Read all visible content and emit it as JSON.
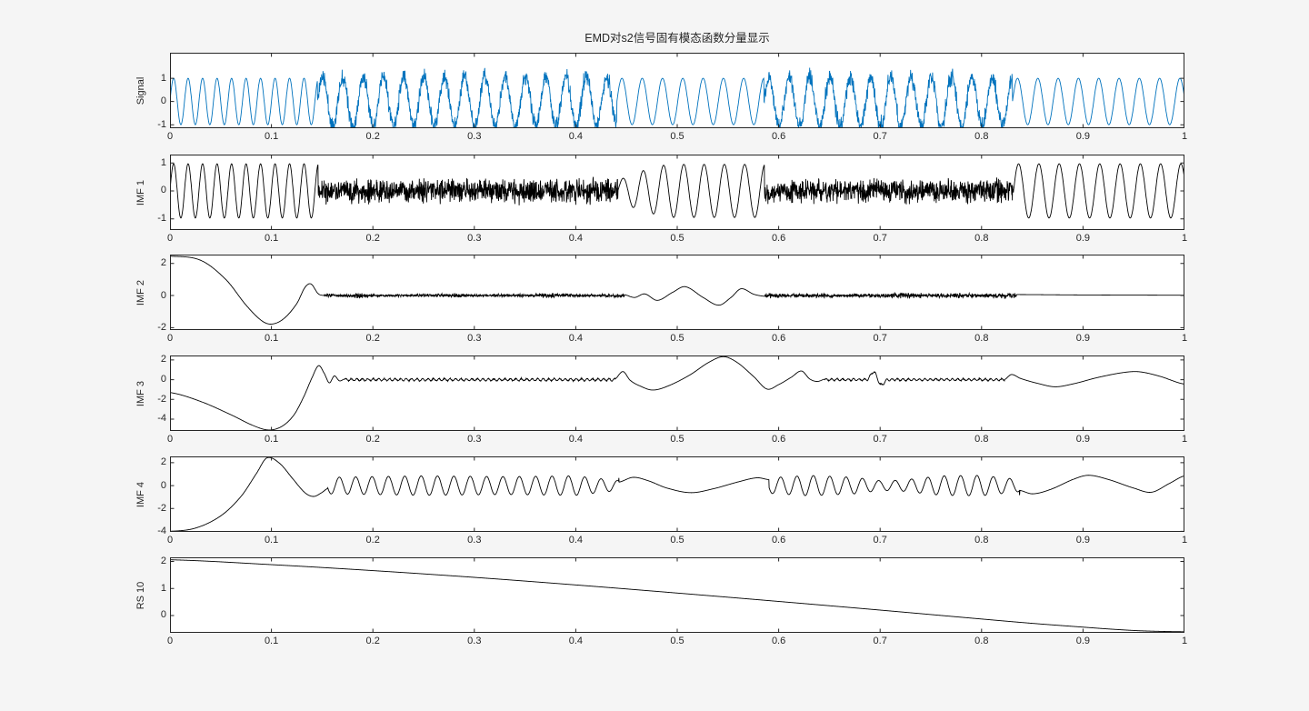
{
  "chart_data": {
    "type": "line",
    "title": "EMD对s2信号固有模态函数分量显示",
    "x": {
      "min": 0,
      "max": 1,
      "ticks": [
        0,
        0.1,
        0.2,
        0.3,
        0.4,
        0.5,
        0.6,
        0.7,
        0.8,
        0.9,
        1
      ],
      "tick_labels": [
        "0",
        "0.1",
        "0.2",
        "0.3",
        "0.4",
        "0.5",
        "0.6",
        "0.7",
        "0.8",
        "0.9",
        "1"
      ]
    },
    "colors": {
      "signal_line": "#0072BD",
      "imf_line": "#000000",
      "axis": "#262626",
      "tick_text": "#262626",
      "axes_bg": "#ffffff",
      "figure_bg": "#f5f5f5"
    },
    "subplots": [
      {
        "ylabel": "Signal",
        "color": "#0072BD",
        "ylim": [
          -1.15,
          2.1
        ],
        "yticks": [
          -1,
          0,
          1
        ],
        "ytick_labels": [
          "-1",
          "0",
          "1"
        ],
        "segments": [
          {
            "type": "sine",
            "t0": 0,
            "t1": 0.1455,
            "freq": 70,
            "amp": 1.0
          },
          {
            "type": "mix",
            "t0": 0.1455,
            "t1": 0.4405,
            "freq": 50,
            "amp": 1.08,
            "noise": 0.33,
            "seed": 11
          },
          {
            "type": "sine",
            "t0": 0.4405,
            "t1": 0.5855,
            "freq": 50,
            "amp": 1.0
          },
          {
            "type": "mix",
            "t0": 0.5855,
            "t1": 0.8305,
            "freq": 50,
            "amp": 1.08,
            "noise": 0.33,
            "seed": 12
          },
          {
            "type": "sine",
            "t0": 0.8305,
            "t1": 1.0,
            "freq": 50,
            "amp": 1.0
          }
        ]
      },
      {
        "ylabel": "IMF 1",
        "color": "#000000",
        "ylim": [
          -1.4,
          1.3
        ],
        "yticks": [
          -1,
          0,
          1
        ],
        "ytick_labels": [
          "-1",
          "0",
          "1"
        ],
        "segments": [
          {
            "type": "sine",
            "t0": 0,
            "t1": 0.146,
            "freq": 70,
            "amp": 0.97
          },
          {
            "type": "noise",
            "t0": 0.146,
            "t1": 0.4415,
            "amp": 0.4,
            "seed": 21
          },
          {
            "type": "sine",
            "t0": 0.4415,
            "t1": 0.586,
            "freq": 50,
            "amp": 0.95,
            "env": [
              [
                0.4415,
                0.4
              ],
              [
                0.465,
                0.75
              ],
              [
                0.49,
                1.0
              ],
              [
                0.586,
                1.0
              ]
            ]
          },
          {
            "type": "noise",
            "t0": 0.586,
            "t1": 0.8315,
            "amp": 0.38,
            "seed": 22
          },
          {
            "type": "sine",
            "t0": 0.8315,
            "t1": 1.0,
            "freq": 50,
            "amp": 0.97
          }
        ]
      },
      {
        "ylabel": "IMF 2",
        "color": "#000000",
        "ylim": [
          -2.15,
          2.55
        ],
        "yticks": [
          -2,
          0,
          2
        ],
        "ytick_labels": [
          "-2",
          "0",
          "2"
        ],
        "segments": [
          {
            "type": "spline",
            "pts": [
              [
                0,
                2.45
              ],
              [
                0.03,
                2.2
              ],
              [
                0.055,
                1.0
              ],
              [
                0.075,
                -0.6
              ],
              [
                0.09,
                -1.55
              ],
              [
                0.1,
                -1.78
              ],
              [
                0.112,
                -1.45
              ],
              [
                0.125,
                -0.5
              ],
              [
                0.133,
                0.5
              ],
              [
                0.139,
                0.72
              ],
              [
                0.146,
                0.12
              ],
              [
                0.152,
                0.0
              ]
            ]
          },
          {
            "type": "noise",
            "t0": 0.152,
            "t1": 0.448,
            "amp": 0.09,
            "seed": 31,
            "env": [
              [
                0.152,
                1.3
              ],
              [
                0.17,
                0.8
              ],
              [
                0.19,
                1.8
              ],
              [
                0.205,
                0.8
              ],
              [
                0.25,
                1.0
              ],
              [
                0.285,
                1.5
              ],
              [
                0.3,
                0.8
              ],
              [
                0.35,
                1.1
              ],
              [
                0.38,
                1.5
              ],
              [
                0.4,
                0.9
              ],
              [
                0.43,
                1.0
              ],
              [
                0.448,
                1.4
              ]
            ]
          },
          {
            "type": "spline",
            "pts": [
              [
                0.448,
                0.05
              ],
              [
                0.458,
                -0.12
              ],
              [
                0.468,
                0.1
              ],
              [
                0.4805,
                -0.3
              ],
              [
                0.4955,
                0.2
              ],
              [
                0.508,
                0.55
              ],
              [
                0.5255,
                -0.12
              ],
              [
                0.541,
                -0.6
              ],
              [
                0.553,
                -0.12
              ],
              [
                0.563,
                0.42
              ],
              [
                0.5755,
                0.08
              ],
              [
                0.5865,
                -0.05
              ]
            ]
          },
          {
            "type": "noise",
            "t0": 0.5865,
            "t1": 0.8345,
            "amp": 0.11,
            "seed": 32,
            "env": [
              [
                0.5865,
                1.5
              ],
              [
                0.61,
                0.8
              ],
              [
                0.64,
                1.2
              ],
              [
                0.67,
                0.8
              ],
              [
                0.7,
                1.0
              ],
              [
                0.725,
                1.6
              ],
              [
                0.75,
                0.9
              ],
              [
                0.78,
                1.3
              ],
              [
                0.8,
                0.9
              ],
              [
                0.8175,
                1.6
              ],
              [
                0.8345,
                1.0
              ]
            ]
          },
          {
            "type": "spline",
            "pts": [
              [
                0.8345,
                0.06
              ],
              [
                0.9,
                0.035
              ],
              [
                1.0,
                0.02
              ]
            ]
          }
        ]
      },
      {
        "ylabel": "IMF 3",
        "color": "#000000",
        "ylim": [
          -5.2,
          2.45
        ],
        "yticks": [
          -4,
          -2,
          0,
          2
        ],
        "ytick_labels": [
          "-4",
          "-2",
          "0",
          "2"
        ],
        "segments": [
          {
            "type": "spline",
            "pts": [
              [
                0,
                -1.3
              ],
              [
                0.03,
                -2.2
              ],
              [
                0.06,
                -3.55
              ],
              [
                0.082,
                -4.65
              ],
              [
                0.097,
                -5.1
              ],
              [
                0.11,
                -4.75
              ],
              [
                0.122,
                -3.6
              ],
              [
                0.132,
                -1.7
              ],
              [
                0.14,
                0.2
              ],
              [
                0.1465,
                1.42
              ],
              [
                0.152,
                0.65
              ],
              [
                0.157,
                -0.32
              ],
              [
                0.162,
                0.38
              ],
              [
                0.167,
                -0.12
              ],
              [
                0.172,
                0.06
              ]
            ]
          },
          {
            "type": "ripple",
            "t0": 0.172,
            "t1": 0.4385,
            "amp": 0.11,
            "freq": 185,
            "seed": 41
          },
          {
            "type": "spline",
            "pts": [
              [
                0.4385,
                0.05
              ],
              [
                0.4465,
                0.82
              ],
              [
                0.4535,
                -0.05
              ],
              [
                0.4625,
                -0.6
              ],
              [
                0.4755,
                -1.05
              ],
              [
                0.49,
                -0.68
              ],
              [
                0.512,
                0.45
              ],
              [
                0.531,
                1.75
              ],
              [
                0.5455,
                2.33
              ],
              [
                0.559,
                1.75
              ],
              [
                0.5755,
                0.3
              ],
              [
                0.5885,
                -0.95
              ],
              [
                0.6,
                -0.5
              ],
              [
                0.6125,
                0.25
              ],
              [
                0.6225,
                0.88
              ],
              [
                0.6305,
                0.08
              ],
              [
                0.638,
                -0.18
              ],
              [
                0.6455,
                0.05
              ]
            ]
          },
          {
            "type": "ripple",
            "t0": 0.6455,
            "t1": 0.8225,
            "amp": 0.1,
            "freq": 185,
            "seed": 42
          },
          {
            "type": "spline",
            "pts": [
              [
                0.6875,
                0.0
              ],
              [
                0.694,
                0.78
              ],
              [
                0.7005,
                -0.5
              ],
              [
                0.707,
                0.0
              ]
            ]
          },
          {
            "type": "spline",
            "pts": [
              [
                0.8225,
                0.0
              ],
              [
                0.8295,
                0.52
              ],
              [
                0.8385,
                0.12
              ],
              [
                0.8555,
                -0.38
              ],
              [
                0.8725,
                -0.72
              ],
              [
                0.8905,
                -0.42
              ],
              [
                0.9145,
                0.22
              ],
              [
                0.9395,
                0.72
              ],
              [
                0.9555,
                0.8
              ],
              [
                0.9755,
                0.35
              ],
              [
                1.0,
                -0.45
              ]
            ]
          }
        ]
      },
      {
        "ylabel": "IMF 4",
        "color": "#000000",
        "ylim": [
          -4.05,
          2.55
        ],
        "yticks": [
          -4,
          -2,
          0,
          2
        ],
        "ytick_labels": [
          "-4",
          "-2",
          "0",
          "2"
        ],
        "segments": [
          {
            "type": "spline",
            "pts": [
              [
                0,
                -4.0
              ],
              [
                0.025,
                -3.72
              ],
              [
                0.05,
                -2.65
              ],
              [
                0.07,
                -0.95
              ],
              [
                0.0855,
                1.1
              ],
              [
                0.0955,
                2.42
              ],
              [
                0.108,
                1.95
              ],
              [
                0.121,
                0.6
              ],
              [
                0.133,
                -0.62
              ],
              [
                0.1415,
                -0.95
              ],
              [
                0.1495,
                -0.62
              ],
              [
                0.1555,
                -0.25
              ]
            ]
          },
          {
            "type": "sine",
            "t0": 0.1555,
            "t1": 0.4425,
            "freq": 62,
            "amp": 0.85,
            "phase": 3.4,
            "env": [
              [
                0.1555,
                0.85
              ],
              [
                0.25,
                1.0
              ],
              [
                0.33,
                0.92
              ],
              [
                0.4,
                1.0
              ],
              [
                0.425,
                0.7
              ],
              [
                0.4425,
                0.5
              ]
            ]
          },
          {
            "type": "spline",
            "pts": [
              [
                0.4425,
                0.3
              ],
              [
                0.4565,
                0.72
              ],
              [
                0.4715,
                0.42
              ],
              [
                0.49,
                -0.22
              ],
              [
                0.5135,
                -0.62
              ],
              [
                0.5355,
                -0.28
              ],
              [
                0.56,
                0.32
              ],
              [
                0.5785,
                0.68
              ],
              [
                0.5905,
                0.52
              ]
            ]
          },
          {
            "type": "sine",
            "t0": 0.5905,
            "t1": 0.8375,
            "freq": 62,
            "amp": 0.85,
            "phase": 3.4,
            "env": [
              [
                0.5905,
                0.8
              ],
              [
                0.63,
                1.05
              ],
              [
                0.675,
                0.85
              ],
              [
                0.7,
                0.5
              ],
              [
                0.72,
                0.55
              ],
              [
                0.76,
                1.0
              ],
              [
                0.8,
                1.05
              ],
              [
                0.8375,
                0.62
              ]
            ]
          },
          {
            "type": "spline",
            "pts": [
              [
                0.8375,
                -0.42
              ],
              [
                0.8505,
                -0.72
              ],
              [
                0.8685,
                -0.32
              ],
              [
                0.8905,
                0.55
              ],
              [
                0.9055,
                0.9
              ],
              [
                0.9255,
                0.52
              ],
              [
                0.95,
                -0.22
              ],
              [
                0.9675,
                -0.58
              ],
              [
                0.985,
                0.18
              ],
              [
                1.0,
                0.85
              ]
            ]
          }
        ]
      },
      {
        "ylabel": "RS 10",
        "color": "#000000",
        "ylim": [
          -0.64,
          2.15
        ],
        "yticks": [
          0,
          1,
          2
        ],
        "ytick_labels": [
          "0",
          "1",
          "2"
        ],
        "segments": [
          {
            "type": "spline",
            "pts": [
              [
                0,
                2.06
              ],
              [
                0.1,
                1.88
              ],
              [
                0.2,
                1.66
              ],
              [
                0.3,
                1.41
              ],
              [
                0.4,
                1.13
              ],
              [
                0.5,
                0.83
              ],
              [
                0.6,
                0.52
              ],
              [
                0.7,
                0.2
              ],
              [
                0.8,
                -0.13
              ],
              [
                0.85,
                -0.29
              ],
              [
                0.9,
                -0.43
              ],
              [
                0.93,
                -0.51
              ],
              [
                0.96,
                -0.57
              ],
              [
                1.0,
                -0.6
              ]
            ]
          }
        ]
      }
    ]
  }
}
